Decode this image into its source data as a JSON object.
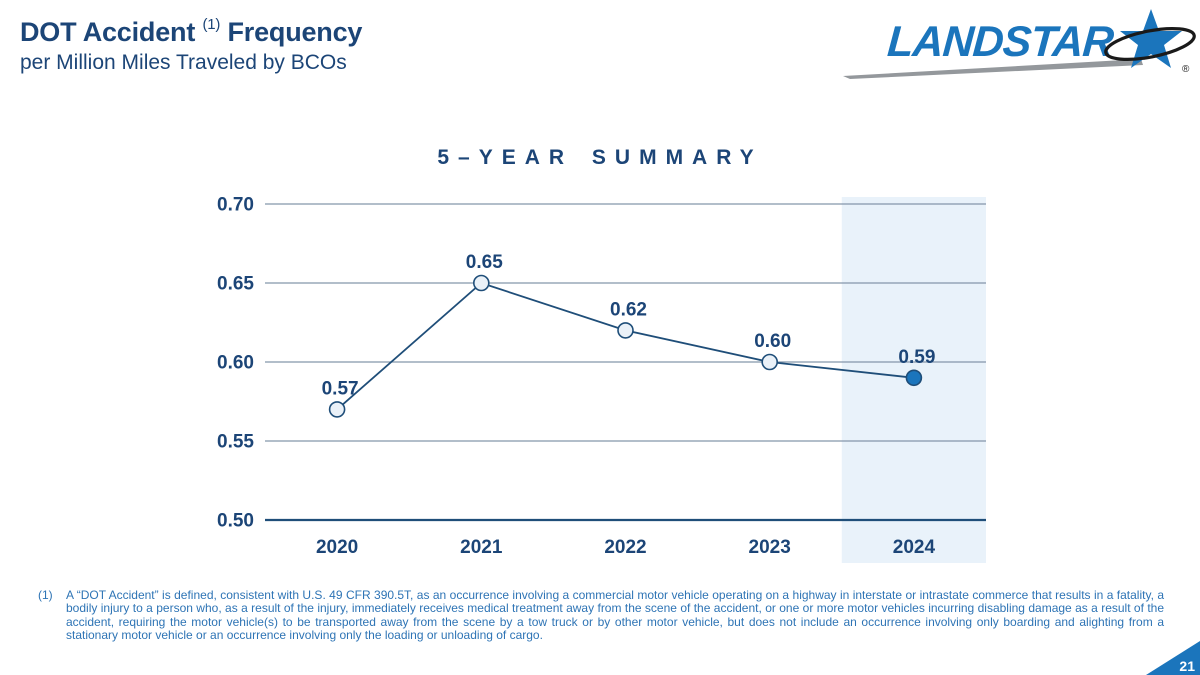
{
  "slide": {
    "title_main": "DOT Accident",
    "title_superscript": "(1)",
    "title_rest": "Frequency",
    "subtitle": "per Million Miles Traveled by BCOs",
    "page_number": "21"
  },
  "logo": {
    "brand": "LANDSTAR",
    "registered_mark": "®",
    "blue": "#1B75BC"
  },
  "chart_data": {
    "type": "line",
    "title": "5–YEAR SUMMARY",
    "categories": [
      "2020",
      "2021",
      "2022",
      "2023",
      "2024"
    ],
    "values": [
      0.57,
      0.65,
      0.62,
      0.6,
      0.59
    ],
    "data_labels": [
      "0.57",
      "0.65",
      "0.62",
      "0.60",
      "0.59"
    ],
    "y_ticks": [
      0.7,
      0.65,
      0.6,
      0.55,
      0.5
    ],
    "y_tick_labels": [
      "0.70",
      "0.65",
      "0.60",
      "0.55",
      "0.50"
    ],
    "ylim": [
      0.5,
      0.7
    ],
    "grid": true,
    "legend": "none",
    "highlighted_category": "2024",
    "colors": {
      "line": "#1F4E79",
      "marker_fill": "#EAF1F8",
      "marker_fill_highlight": "#1B75BC",
      "marker_stroke": "#1F4E79",
      "gridline": "#8496AA",
      "baseline": "#1F4E79",
      "highlight_band": "#E9F2FA",
      "labels": "#1C4577"
    }
  },
  "footnote": {
    "marker": "(1)",
    "text": "A “DOT Accident” is defined, consistent with U.S. 49 CFR 390.5T, as an occurrence involving a commercial motor vehicle operating on a highway in interstate or intrastate commerce that results in a fatality, a bodily injury to a person who, as a result of the injury, immediately receives medical treatment away from the scene of the accident, or one or more motor vehicles incurring disabling damage as a result of the accident, requiring the motor vehicle(s) to be transported away from the scene by a tow truck or by other motor vehicle, but does not include an occurrence involving only boarding and alighting from a stationary motor vehicle or an occurrence involving only the loading or unloading of cargo."
  },
  "colors": {
    "title_navy": "#1C4577",
    "footnote_blue": "#2E74B5",
    "corner_triangle": "#1B75BC"
  }
}
